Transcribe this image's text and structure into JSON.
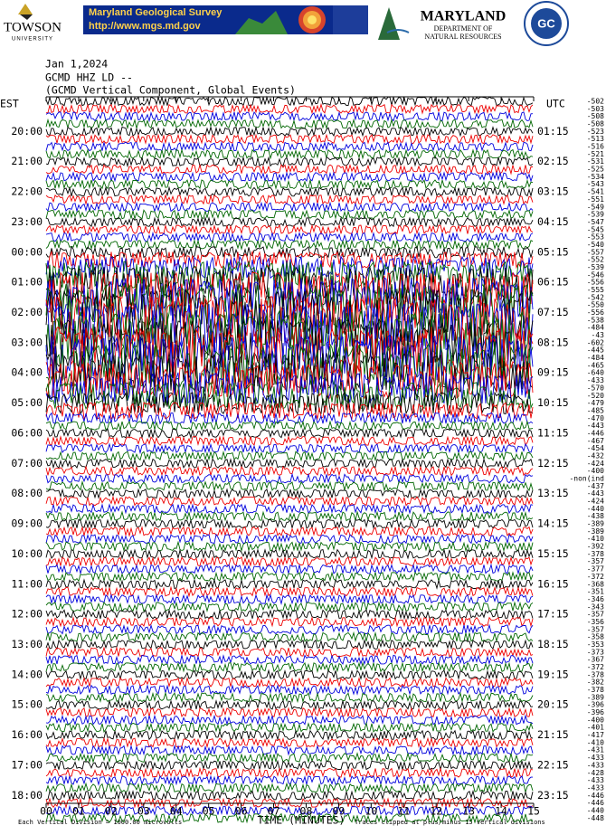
{
  "header": {
    "towson": [
      "TOWSON",
      "UNIVERSITY"
    ],
    "mgs_title": "Maryland Geological Survey",
    "mgs_url": "http://www.mgs.md.gov",
    "dnr": [
      "MARYLAND",
      "DEPARTMENT OF",
      "NATURAL RESOURCES"
    ],
    "college_logo": "GC"
  },
  "plot": {
    "date": "Jan 1,2024",
    "station": "GCMD HHZ LD --",
    "description": "(GCMD Vertical Component, Global Events)",
    "left_zone": "EST",
    "right_zone": "UTC",
    "left_hours": [
      "20:00",
      "21:00",
      "22:00",
      "23:00",
      "00:00",
      "01:00",
      "02:00",
      "03:00",
      "04:00",
      "05:00",
      "06:00",
      "07:00",
      "08:00",
      "09:00",
      "10:00",
      "11:00",
      "12:00",
      "13:00",
      "14:00",
      "15:00",
      "16:00",
      "17:00",
      "18:00"
    ],
    "right_hours": [
      "01:15",
      "02:15",
      "03:15",
      "04:15",
      "05:15",
      "06:15",
      "07:15",
      "08:15",
      "09:15",
      "10:15",
      "11:15",
      "12:15",
      "13:15",
      "14:15",
      "15:15",
      "16:15",
      "17:15",
      "18:15",
      "19:15",
      "20:15",
      "21:15",
      "22:15",
      "23:15"
    ],
    "trace_labels": [
      "-502",
      "-503",
      "-508",
      "-508",
      "-523",
      "-513",
      "-516",
      "-521",
      "-531",
      "-525",
      "-534",
      "-543",
      "-541",
      "-551",
      "-549",
      "-539",
      "-547",
      "-545",
      "-553",
      "-540",
      "-557",
      "-552",
      "-539",
      "-546",
      "-556",
      "-555",
      "-542",
      "-550",
      "-556",
      "-538",
      "-484",
      "-43",
      "-602",
      "-445",
      "-484",
      "-465",
      "-640",
      "-433",
      "-570",
      "-520",
      "-479",
      "-485",
      "-470",
      "-443",
      "-446",
      "-467",
      "-454",
      "-432",
      "-424",
      "-400",
      "-non(ind",
      "-437",
      "-443",
      "-424",
      "-440",
      "-438",
      "-389",
      "-389",
      "-410",
      "-392",
      "-378",
      "-357",
      "-377",
      "-372",
      "-368",
      "-351",
      "-346",
      "-343",
      "-357",
      "-356",
      "-357",
      "-358",
      "-353",
      "-373",
      "-367",
      "-372",
      "-378",
      "-382",
      "-378",
      "-389",
      "-396",
      "-396",
      "-400",
      "-401",
      "-417",
      "-410",
      "-431",
      "-433",
      "-433",
      "-428",
      "-433",
      "-433",
      "-446",
      "-446",
      "-440",
      "-448"
    ],
    "x_ticks": [
      "00",
      "01",
      "02",
      "03",
      "04",
      "05",
      "06",
      "07",
      "08",
      "09",
      "10",
      "11",
      "12",
      "13",
      "14",
      "15"
    ],
    "x_label": "TIME (MINUTES)",
    "footer_left": "Each Vertical Division = 1000.00 microvolts",
    "footer_right": "Traces clipped at plus/minus 15 vertical divisions"
  }
}
